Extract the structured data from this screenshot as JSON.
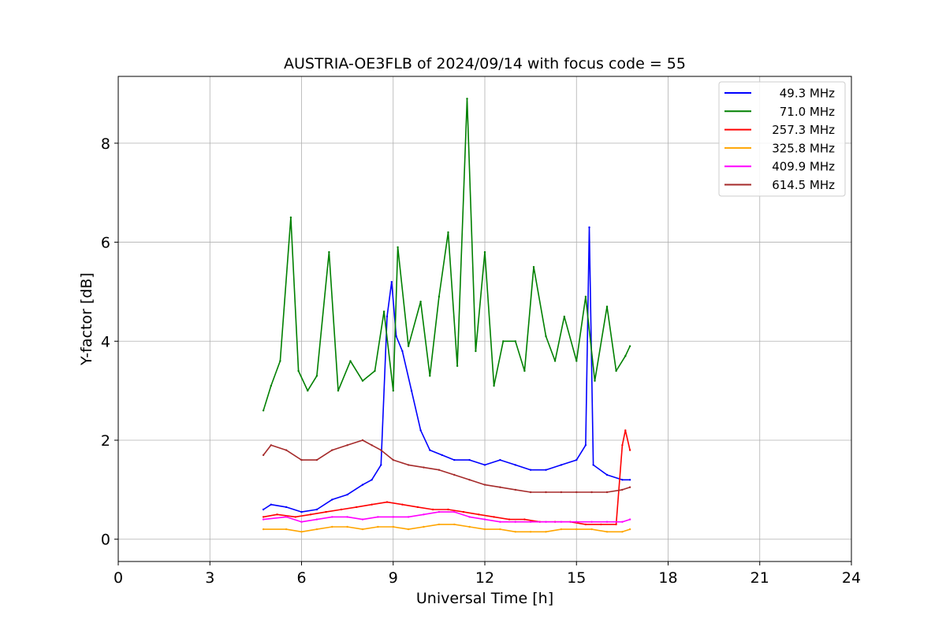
{
  "chart_data": {
    "type": "line",
    "title": "AUSTRIA-OE3FLB of 2024/09/14 with focus code = 55",
    "xlabel": "Universal Time [h]",
    "ylabel": "Y-factor [dB]",
    "xlim": [
      0,
      24
    ],
    "ylim": [
      -0.45,
      9.35
    ],
    "xticks": [
      0,
      3,
      6,
      9,
      12,
      15,
      18,
      21,
      24
    ],
    "xtick_labels": [
      "0",
      "3",
      "6",
      "9",
      "12",
      "15",
      "18",
      "21",
      "24"
    ],
    "yticks": [
      0,
      2,
      4,
      6,
      8
    ],
    "ytick_labels": [
      "0",
      "2",
      "4",
      "6",
      "8"
    ],
    "grid": true,
    "legend_position": "top-right",
    "series": [
      {
        "name": " 49.3 MHz",
        "color": "#0000ff",
        "x": [
          4.75,
          5.0,
          5.5,
          6.0,
          6.5,
          7.0,
          7.5,
          8.0,
          8.3,
          8.6,
          8.8,
          8.95,
          9.1,
          9.3,
          9.6,
          9.9,
          10.2,
          10.6,
          11.0,
          11.5,
          12.0,
          12.5,
          13.0,
          13.5,
          14.0,
          14.5,
          15.0,
          15.3,
          15.42,
          15.55,
          16.0,
          16.5,
          16.75
        ],
        "y": [
          0.6,
          0.7,
          0.65,
          0.55,
          0.6,
          0.8,
          0.9,
          1.1,
          1.2,
          1.5,
          4.5,
          5.2,
          4.1,
          3.8,
          3.0,
          2.2,
          1.8,
          1.7,
          1.6,
          1.6,
          1.5,
          1.6,
          1.5,
          1.4,
          1.4,
          1.5,
          1.6,
          1.9,
          6.3,
          1.5,
          1.3,
          1.2,
          1.2
        ]
      },
      {
        "name": " 71.0 MHz",
        "color": "#008000",
        "x": [
          4.75,
          5.0,
          5.3,
          5.65,
          5.9,
          6.2,
          6.5,
          6.9,
          7.2,
          7.6,
          8.0,
          8.4,
          8.7,
          9.0,
          9.15,
          9.5,
          9.9,
          10.2,
          10.5,
          10.8,
          11.1,
          11.42,
          11.7,
          12.0,
          12.3,
          12.6,
          13.0,
          13.3,
          13.6,
          14.0,
          14.3,
          14.6,
          15.0,
          15.3,
          15.6,
          16.0,
          16.3,
          16.6,
          16.75
        ],
        "y": [
          2.6,
          3.1,
          3.6,
          6.5,
          3.4,
          3.0,
          3.3,
          5.8,
          3.0,
          3.6,
          3.2,
          3.4,
          4.6,
          3.0,
          5.9,
          3.9,
          4.8,
          3.3,
          4.9,
          6.2,
          3.5,
          8.9,
          3.8,
          5.8,
          3.1,
          4.0,
          4.0,
          3.4,
          5.5,
          4.1,
          3.6,
          4.5,
          3.6,
          4.9,
          3.2,
          4.7,
          3.4,
          3.7,
          3.9
        ]
      },
      {
        "name": "257.3 MHz",
        "color": "#ff0000",
        "x": [
          4.75,
          5.2,
          5.8,
          6.3,
          6.8,
          7.3,
          7.8,
          8.3,
          8.8,
          9.3,
          9.8,
          10.3,
          10.8,
          11.3,
          11.8,
          12.3,
          12.8,
          13.3,
          13.8,
          14.3,
          14.8,
          15.3,
          15.8,
          16.3,
          16.5,
          16.6,
          16.75
        ],
        "y": [
          0.45,
          0.5,
          0.45,
          0.5,
          0.55,
          0.6,
          0.65,
          0.7,
          0.75,
          0.7,
          0.65,
          0.6,
          0.6,
          0.55,
          0.5,
          0.45,
          0.4,
          0.4,
          0.35,
          0.35,
          0.35,
          0.3,
          0.3,
          0.3,
          1.9,
          2.2,
          1.8
        ]
      },
      {
        "name": "325.8 MHz",
        "color": "#ffa500",
        "x": [
          4.75,
          5.5,
          6.0,
          6.5,
          7.0,
          7.5,
          8.0,
          8.5,
          9.0,
          9.5,
          10.0,
          10.5,
          11.0,
          11.5,
          12.0,
          12.5,
          13.0,
          13.5,
          14.0,
          14.5,
          15.0,
          15.5,
          16.0,
          16.5,
          16.75
        ],
        "y": [
          0.2,
          0.2,
          0.15,
          0.2,
          0.25,
          0.25,
          0.2,
          0.25,
          0.25,
          0.2,
          0.25,
          0.3,
          0.3,
          0.25,
          0.2,
          0.2,
          0.15,
          0.15,
          0.15,
          0.2,
          0.2,
          0.2,
          0.15,
          0.15,
          0.2
        ]
      },
      {
        "name": "409.9 MHz",
        "color": "#ff00ff",
        "x": [
          4.75,
          5.5,
          6.0,
          6.5,
          7.0,
          7.5,
          8.0,
          8.5,
          9.0,
          9.5,
          10.0,
          10.5,
          11.0,
          11.5,
          12.0,
          12.5,
          13.0,
          13.5,
          14.0,
          14.5,
          15.0,
          15.5,
          16.0,
          16.5,
          16.75
        ],
        "y": [
          0.4,
          0.45,
          0.35,
          0.4,
          0.45,
          0.45,
          0.4,
          0.45,
          0.45,
          0.45,
          0.5,
          0.55,
          0.55,
          0.45,
          0.4,
          0.35,
          0.35,
          0.35,
          0.35,
          0.35,
          0.35,
          0.35,
          0.35,
          0.35,
          0.4
        ]
      },
      {
        "name": "614.5 MHz",
        "color": "#a52a2a",
        "x": [
          4.75,
          5.0,
          5.5,
          6.0,
          6.5,
          7.0,
          7.5,
          8.0,
          8.3,
          8.6,
          9.0,
          9.5,
          10.0,
          10.5,
          11.0,
          11.5,
          12.0,
          12.5,
          13.0,
          13.5,
          14.0,
          14.5,
          15.0,
          15.5,
          16.0,
          16.5,
          16.75
        ],
        "y": [
          1.7,
          1.9,
          1.8,
          1.6,
          1.6,
          1.8,
          1.9,
          2.0,
          1.9,
          1.8,
          1.6,
          1.5,
          1.45,
          1.4,
          1.3,
          1.2,
          1.1,
          1.05,
          1.0,
          0.95,
          0.95,
          0.95,
          0.95,
          0.95,
          0.95,
          1.0,
          1.05
        ]
      }
    ]
  }
}
